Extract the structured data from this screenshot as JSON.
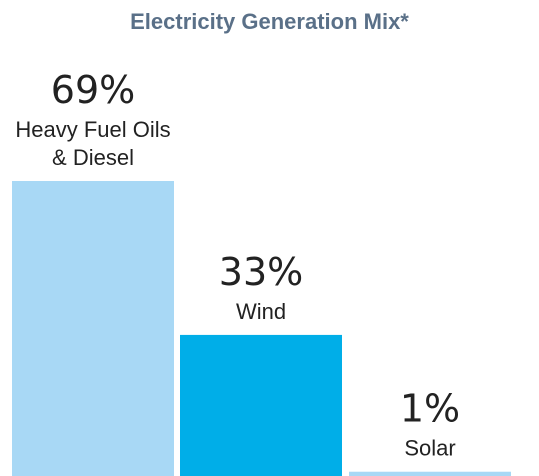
{
  "chart_data": {
    "type": "bar",
    "title": "Electricity Generation Mix*",
    "categories": [
      [
        "Heavy Fuel Oils",
        "& Diesel"
      ],
      [
        "Wind"
      ],
      [
        "Solar"
      ]
    ],
    "values": [
      69,
      33,
      1
    ],
    "value_labels": [
      "69%",
      "33%",
      "1%"
    ],
    "colors": [
      "#a8d8f5",
      "#00aee8",
      "#a8d8f5"
    ],
    "xlabel": "",
    "ylabel": "",
    "ylim": [
      0,
      69
    ],
    "grid": false,
    "legend": "none"
  }
}
